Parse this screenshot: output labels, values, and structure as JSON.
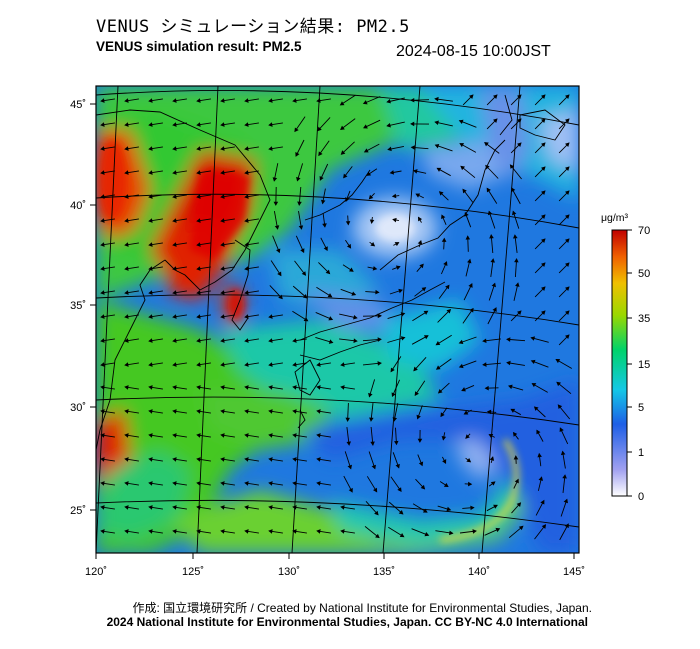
{
  "header": {
    "title_jp": "VENUS シミュレーション結果: PM2.5",
    "title_en": "VENUS simulation result: PM2.5",
    "timestamp": "2024-08-15 10:00JST"
  },
  "map": {
    "lon_ticks": [
      "120˚",
      "125˚",
      "130˚",
      "135˚",
      "140˚",
      "145˚"
    ],
    "lat_ticks": [
      "45˚",
      "40˚",
      "35˚",
      "30˚",
      "25˚"
    ],
    "colors": {
      "sea_background": "#1f78e0",
      "land_outline": "#000000",
      "frame": "#000000"
    }
  },
  "colorbar": {
    "unit": "μg/m³",
    "tick_labels": [
      "70",
      "50",
      "35",
      "15",
      "5",
      "1",
      "0"
    ],
    "colors": [
      "#ffffff",
      "#7a7ae8",
      "#1e5fe6",
      "#14c8e6",
      "#00d36a",
      "#3cc800",
      "#c8d800",
      "#f0a000",
      "#e84000",
      "#c00000"
    ]
  },
  "footer": {
    "credit_jp": "作成: 国立環境研究所 / Created by National Institute for Environmental Studies, Japan.",
    "credit_en": "2024 National Institute for Environmental Studies, Japan. CC BY-NC 4.0 International"
  }
}
